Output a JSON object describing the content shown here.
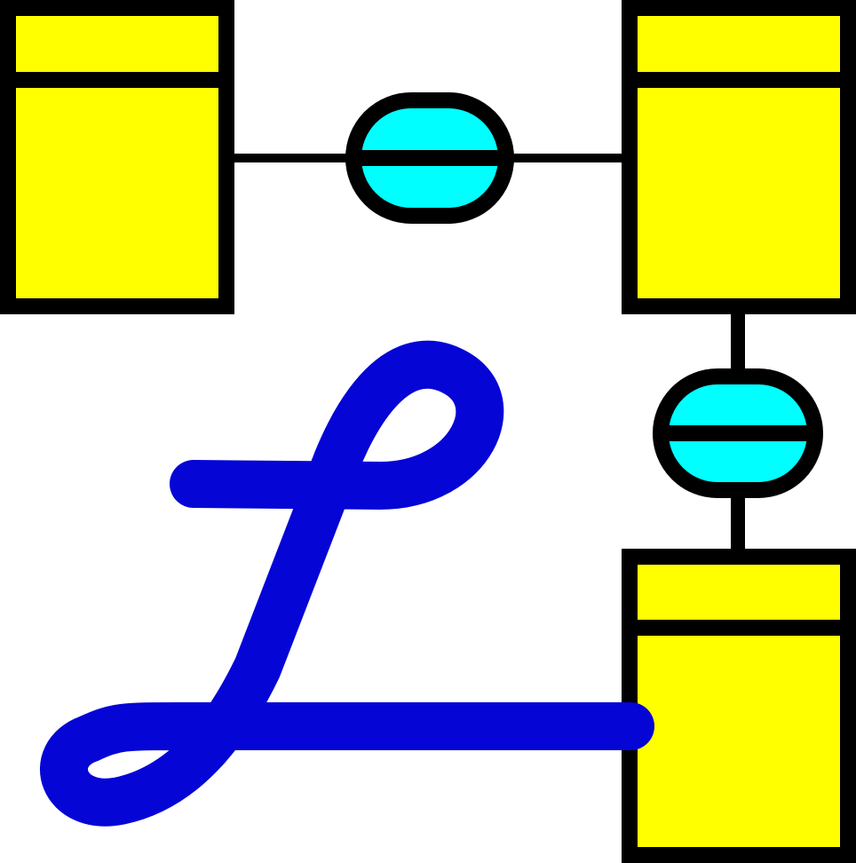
{
  "colors": {
    "background": "#ffffff",
    "outline": "#000000",
    "entity_fill": "#ffff00",
    "relationship_fill": "#00ffff",
    "logo_stroke": "#0505d6"
  },
  "icons": {
    "entity": "entity-box-icon",
    "relationship": "relationship-capsule-icon",
    "logo": "script-l-logo-icon"
  },
  "diagram": {
    "entities": [
      {
        "id": "entity-top-left"
      },
      {
        "id": "entity-top-right"
      },
      {
        "id": "entity-bottom-right"
      }
    ],
    "relationships": [
      {
        "id": "relationship-horizontal",
        "connects": [
          "entity-top-left",
          "entity-top-right"
        ]
      },
      {
        "id": "relationship-vertical",
        "connects": [
          "entity-top-right",
          "entity-bottom-right"
        ]
      }
    ]
  }
}
